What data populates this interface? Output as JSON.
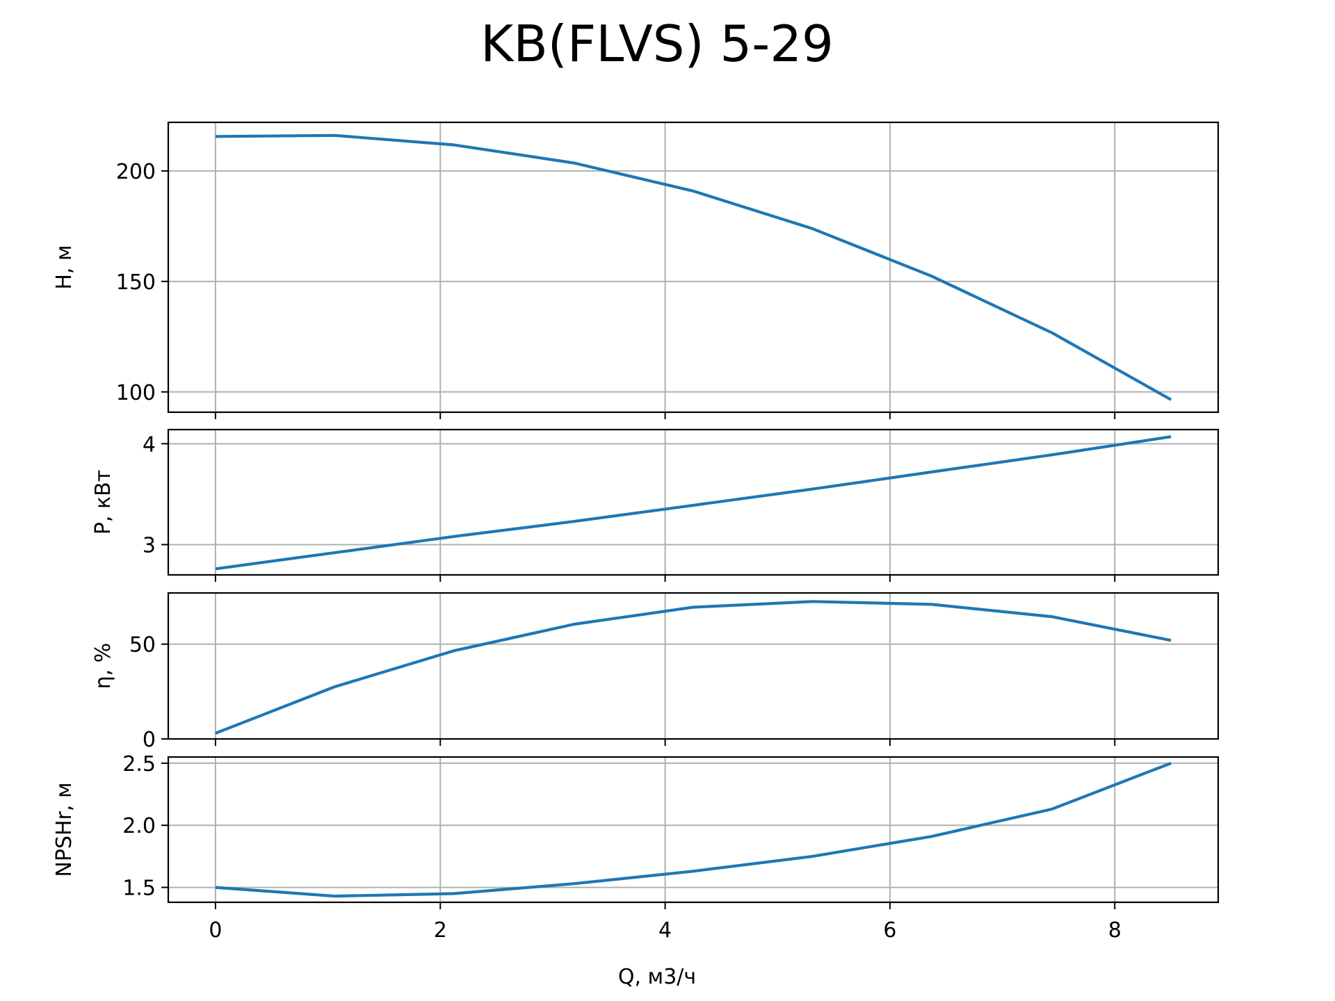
{
  "title": "KB(FLVS) 5-29",
  "xlabel": "Q, м3/ч",
  "colors": {
    "line": "#1f77b4",
    "grid": "#b0b0b0",
    "axes": "#000000"
  },
  "x_ticks": [
    0,
    2,
    4,
    6,
    8
  ],
  "chart_data": [
    {
      "type": "line",
      "ylabel": "H, м",
      "xlabel": "",
      "xlim": [
        -0.42,
        8.92
      ],
      "ylim": [
        90.8,
        222.0
      ],
      "y_ticks": [
        100,
        150,
        200
      ],
      "y_tick_labels": [
        "100",
        "150",
        "200"
      ],
      "grid": true,
      "series": [
        {
          "x": [
            0,
            1.06,
            2.12,
            3.19,
            4.25,
            5.31,
            6.37,
            7.44,
            8.5
          ],
          "y": [
            215.6,
            216.1,
            211.8,
            203.6,
            190.9,
            173.9,
            152.4,
            126.8,
            96.5
          ]
        }
      ]
    },
    {
      "type": "line",
      "ylabel": "P, кВт",
      "xlabel": "",
      "xlim": [
        -0.42,
        8.92
      ],
      "ylim": [
        2.7,
        4.14
      ],
      "y_ticks": [
        3,
        4
      ],
      "y_tick_labels": [
        "3",
        "4"
      ],
      "grid": true,
      "series": [
        {
          "x": [
            0,
            1.06,
            2.12,
            3.19,
            4.25,
            5.31,
            6.37,
            7.44,
            8.5
          ],
          "y": [
            2.76,
            2.92,
            3.08,
            3.23,
            3.39,
            3.55,
            3.72,
            3.89,
            4.07
          ]
        }
      ]
    },
    {
      "type": "line",
      "ylabel": "η, %",
      "xlabel": "",
      "xlim": [
        -0.42,
        8.92
      ],
      "ylim": [
        0,
        77
      ],
      "y_ticks": [
        0,
        50
      ],
      "y_tick_labels": [
        "0",
        "50"
      ],
      "grid": true,
      "series": [
        {
          "x": [
            0,
            1.06,
            2.12,
            3.19,
            4.25,
            5.31,
            6.37,
            7.44,
            8.5
          ],
          "y": [
            3,
            27.5,
            46.5,
            60.5,
            69.5,
            72.5,
            71,
            64.5,
            52
          ]
        }
      ]
    },
    {
      "type": "line",
      "ylabel": "NPSHr, м",
      "xlabel": "Q, м3/ч",
      "xlim": [
        -0.42,
        8.92
      ],
      "ylim": [
        1.38,
        2.55
      ],
      "y_ticks": [
        1.5,
        2.0,
        2.5
      ],
      "y_tick_labels": [
        "1.5",
        "2.0",
        "2.5"
      ],
      "grid": true,
      "series": [
        {
          "x": [
            0,
            1.06,
            2.12,
            3.19,
            4.25,
            5.31,
            6.37,
            7.44,
            8.5
          ],
          "y": [
            1.5,
            1.43,
            1.45,
            1.53,
            1.63,
            1.75,
            1.91,
            2.13,
            2.5
          ]
        }
      ]
    }
  ]
}
